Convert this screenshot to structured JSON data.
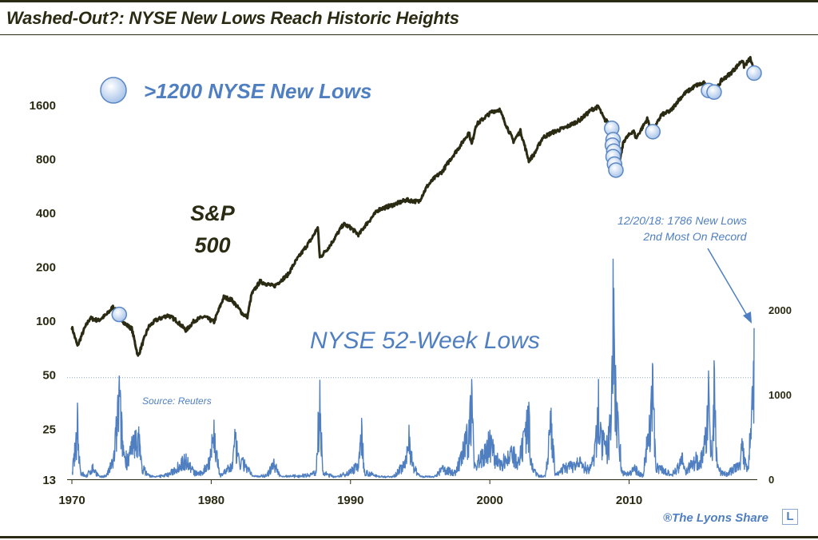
{
  "title": "Washed-Out?: NYSE New Lows Reach Historic Heights",
  "colors": {
    "title": "#2b2a12",
    "sp500_line": "#2b2a12",
    "new_lows": "#4f7fc1",
    "marker_fill": "#cfe0f6",
    "marker_stroke": "#5b87c4",
    "annotation_blue": "#4f7fc1"
  },
  "logo_letter": "L",
  "chart_data": {
    "type": "line",
    "x_ticks": [
      "1970",
      "1980",
      "1990",
      "2000",
      "2010"
    ],
    "left_axis": {
      "scale": "log",
      "ticks": [
        13,
        25,
        50,
        100,
        200,
        400,
        800,
        1600
      ],
      "range": [
        13,
        2900
      ]
    },
    "right_axis": {
      "scale": "linear",
      "ticks": [
        0,
        1000,
        2000
      ],
      "range": [
        0,
        2600
      ]
    },
    "sp500_label_line1": "S&P",
    "sp500_label_line2": "500",
    "lows_label": "NYSE 52-Week Lows",
    "legend_label": ">1200 NYSE New Lows",
    "reference_line_value": 1200,
    "source": "Source: Reuters",
    "annotation_line1": "12/20/18: 1786 New Lows",
    "annotation_line2": "2nd Most On Record",
    "credit": "®The Lyons Share",
    "sp500_series": [
      [
        1970.0,
        92
      ],
      [
        1970.4,
        72
      ],
      [
        1970.9,
        90
      ],
      [
        1971.3,
        103
      ],
      [
        1971.9,
        100
      ],
      [
        1972.5,
        108
      ],
      [
        1972.95,
        119
      ],
      [
        1973.3,
        110
      ],
      [
        1973.8,
        96
      ],
      [
        1974.3,
        90
      ],
      [
        1974.75,
        63
      ],
      [
        1975.0,
        72
      ],
      [
        1975.5,
        92
      ],
      [
        1976.0,
        100
      ],
      [
        1976.9,
        107
      ],
      [
        1977.5,
        100
      ],
      [
        1978.2,
        88
      ],
      [
        1978.8,
        100
      ],
      [
        1979.5,
        105
      ],
      [
        1980.2,
        98
      ],
      [
        1980.9,
        135
      ],
      [
        1981.5,
        130
      ],
      [
        1982.3,
        108
      ],
      [
        1982.6,
        105
      ],
      [
        1982.9,
        140
      ],
      [
        1983.5,
        165
      ],
      [
        1984.5,
        155
      ],
      [
        1985.5,
        180
      ],
      [
        1986.0,
        210
      ],
      [
        1986.6,
        245
      ],
      [
        1987.2,
        285
      ],
      [
        1987.65,
        330
      ],
      [
        1987.8,
        224
      ],
      [
        1988.5,
        260
      ],
      [
        1989.5,
        345
      ],
      [
        1990.0,
        330
      ],
      [
        1990.6,
        300
      ],
      [
        1991.0,
        335
      ],
      [
        1992.0,
        415
      ],
      [
        1993.0,
        440
      ],
      [
        1994.0,
        470
      ],
      [
        1994.9,
        460
      ],
      [
        1995.5,
        560
      ],
      [
        1996.0,
        620
      ],
      [
        1996.6,
        680
      ],
      [
        1997.2,
        800
      ],
      [
        1997.9,
        950
      ],
      [
        1998.5,
        1120
      ],
      [
        1998.7,
        960
      ],
      [
        1999.0,
        1230
      ],
      [
        1999.6,
        1350
      ],
      [
        2000.2,
        1470
      ],
      [
        2000.7,
        1500
      ],
      [
        2001.0,
        1320
      ],
      [
        2001.7,
        1000
      ],
      [
        2002.2,
        1140
      ],
      [
        2002.8,
        780
      ],
      [
        2003.2,
        850
      ],
      [
        2003.8,
        1050
      ],
      [
        2004.5,
        1120
      ],
      [
        2005.5,
        1200
      ],
      [
        2006.5,
        1320
      ],
      [
        2007.3,
        1500
      ],
      [
        2007.8,
        1560
      ],
      [
        2008.2,
        1330
      ],
      [
        2008.6,
        1250
      ],
      [
        2008.8,
        900
      ],
      [
        2009.2,
        690
      ],
      [
        2009.6,
        1000
      ],
      [
        2010.3,
        1150
      ],
      [
        2010.5,
        1040
      ],
      [
        2011.3,
        1330
      ],
      [
        2011.7,
        1120
      ],
      [
        2012.3,
        1400
      ],
      [
        2013.0,
        1480
      ],
      [
        2013.5,
        1680
      ],
      [
        2014.0,
        1850
      ],
      [
        2014.8,
        2050
      ],
      [
        2015.4,
        2110
      ],
      [
        2015.65,
        1900
      ],
      [
        2016.1,
        1850
      ],
      [
        2016.6,
        2170
      ],
      [
        2017.3,
        2400
      ],
      [
        2017.9,
        2700
      ],
      [
        2018.1,
        2850
      ],
      [
        2018.25,
        2620
      ],
      [
        2018.7,
        2900
      ],
      [
        2018.97,
        2420
      ]
    ],
    "new_lows_series": [
      [
        1970.0,
        80
      ],
      [
        1970.3,
        550
      ],
      [
        1970.4,
        900
      ],
      [
        1970.6,
        120
      ],
      [
        1971.0,
        40
      ],
      [
        1971.5,
        180
      ],
      [
        1972.0,
        30
      ],
      [
        1972.5,
        60
      ],
      [
        1973.0,
        300
      ],
      [
        1973.4,
        1220
      ],
      [
        1973.7,
        400
      ],
      [
        1974.0,
        300
      ],
      [
        1974.4,
        520
      ],
      [
        1974.6,
        580
      ],
      [
        1974.8,
        620
      ],
      [
        1975.0,
        200
      ],
      [
        1975.5,
        60
      ],
      [
        1976.0,
        30
      ],
      [
        1977.0,
        80
      ],
      [
        1977.6,
        200
      ],
      [
        1978.2,
        300
      ],
      [
        1978.8,
        100
      ],
      [
        1979.3,
        90
      ],
      [
        1979.8,
        250
      ],
      [
        1980.2,
        700
      ],
      [
        1980.6,
        60
      ],
      [
        1981.5,
        200
      ],
      [
        1981.7,
        590
      ],
      [
        1982.0,
        250
      ],
      [
        1982.4,
        230
      ],
      [
        1983.0,
        40
      ],
      [
        1984.0,
        60
      ],
      [
        1984.5,
        240
      ],
      [
        1985.0,
        40
      ],
      [
        1986.0,
        50
      ],
      [
        1986.7,
        60
      ],
      [
        1987.5,
        100
      ],
      [
        1987.8,
        1170
      ],
      [
        1988.0,
        100
      ],
      [
        1989.0,
        30
      ],
      [
        1990.0,
        120
      ],
      [
        1990.6,
        250
      ],
      [
        1990.8,
        720
      ],
      [
        1991.0,
        120
      ],
      [
        1992.0,
        40
      ],
      [
        1993.0,
        30
      ],
      [
        1994.0,
        260
      ],
      [
        1994.2,
        640
      ],
      [
        1994.5,
        200
      ],
      [
        1995.0,
        40
      ],
      [
        1996.0,
        30
      ],
      [
        1996.6,
        160
      ],
      [
        1997.5,
        100
      ],
      [
        1997.9,
        300
      ],
      [
        1998.5,
        700
      ],
      [
        1998.7,
        1180
      ],
      [
        1998.9,
        200
      ],
      [
        1999.5,
        350
      ],
      [
        2000.0,
        580
      ],
      [
        2000.3,
        400
      ],
      [
        2000.7,
        220
      ],
      [
        2001.0,
        300
      ],
      [
        2001.7,
        380
      ],
      [
        2002.0,
        200
      ],
      [
        2002.5,
        600
      ],
      [
        2002.8,
        910
      ],
      [
        2003.0,
        200
      ],
      [
        2003.5,
        50
      ],
      [
        2004.0,
        60
      ],
      [
        2004.4,
        840
      ],
      [
        2004.7,
        60
      ],
      [
        2005.0,
        100
      ],
      [
        2005.3,
        180
      ],
      [
        2005.9,
        200
      ],
      [
        2006.5,
        250
      ],
      [
        2007.0,
        160
      ],
      [
        2007.3,
        200
      ],
      [
        2007.6,
        500
      ],
      [
        2007.8,
        1180
      ],
      [
        2008.0,
        600
      ],
      [
        2008.3,
        450
      ],
      [
        2008.5,
        500
      ],
      [
        2008.75,
        1250
      ],
      [
        2008.85,
        2600
      ],
      [
        2008.95,
        1500
      ],
      [
        2009.2,
        800
      ],
      [
        2009.5,
        100
      ],
      [
        2010.0,
        80
      ],
      [
        2010.4,
        170
      ],
      [
        2010.7,
        100
      ],
      [
        2011.0,
        60
      ],
      [
        2011.6,
        1100
      ],
      [
        2011.7,
        1340
      ],
      [
        2011.9,
        200
      ],
      [
        2012.3,
        160
      ],
      [
        2012.8,
        110
      ],
      [
        2013.0,
        50
      ],
      [
        2013.5,
        190
      ],
      [
        2013.8,
        310
      ],
      [
        2014.0,
        120
      ],
      [
        2014.5,
        220
      ],
      [
        2014.8,
        320
      ],
      [
        2015.0,
        200
      ],
      [
        2015.5,
        600
      ],
      [
        2015.7,
        1280
      ],
      [
        2015.9,
        300
      ],
      [
        2016.0,
        500
      ],
      [
        2016.1,
        1400
      ],
      [
        2016.3,
        300
      ],
      [
        2016.6,
        100
      ],
      [
        2017.0,
        80
      ],
      [
        2017.5,
        160
      ],
      [
        2017.9,
        200
      ],
      [
        2018.1,
        480
      ],
      [
        2018.3,
        260
      ],
      [
        2018.5,
        140
      ],
      [
        2018.8,
        860
      ],
      [
        2018.97,
        1786
      ]
    ],
    "highlight_points": [
      [
        1973.4,
        108
      ],
      [
        2008.75,
        1180
      ],
      [
        2008.85,
        1020
      ],
      [
        2008.8,
        950
      ],
      [
        2008.9,
        880
      ],
      [
        2008.85,
        820
      ],
      [
        2008.95,
        745
      ],
      [
        2009.05,
        690
      ],
      [
        2011.7,
        1130
      ],
      [
        2015.7,
        1920
      ],
      [
        2016.1,
        1880
      ],
      [
        2018.97,
        2400
      ]
    ]
  }
}
